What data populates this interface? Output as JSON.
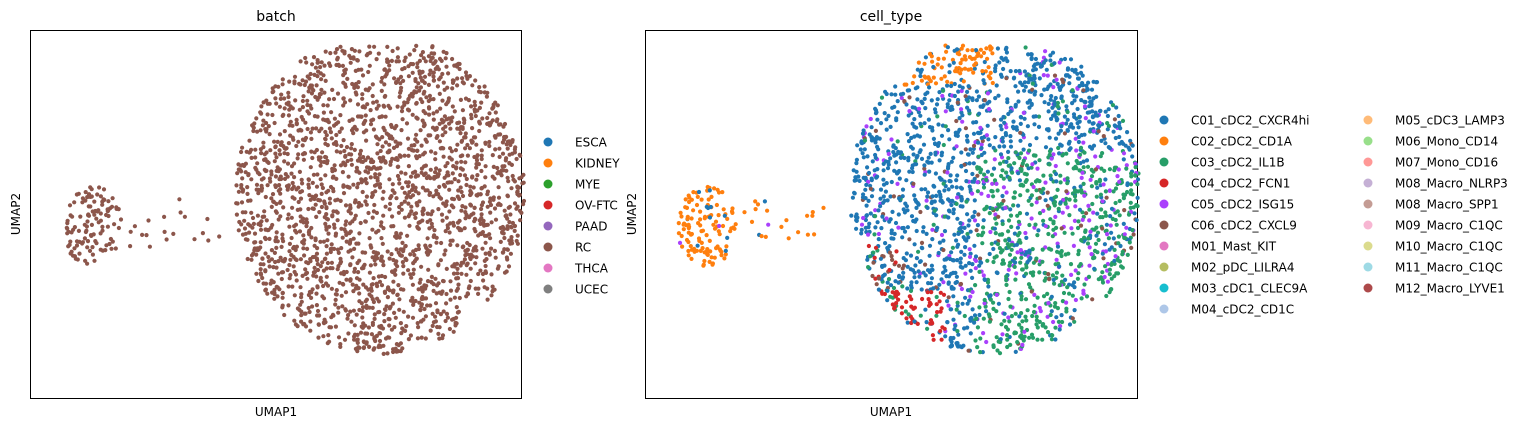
{
  "chart_data": [
    {
      "type": "scatter",
      "title": "batch",
      "xlabel": "UMAP1",
      "ylabel": "UMAP2",
      "grid": false,
      "legend_position": "right",
      "point_color": "#8c564b",
      "legend": [
        {
          "label": "ESCA",
          "color": "#1f77b4"
        },
        {
          "label": "KIDNEY",
          "color": "#ff7f0e"
        },
        {
          "label": "MYE",
          "color": "#2ca02c"
        },
        {
          "label": "OV-FTC",
          "color": "#d62728"
        },
        {
          "label": "PAAD",
          "color": "#9467bd"
        },
        {
          "label": "RC",
          "color": "#8c564b"
        },
        {
          "label": "THCA",
          "color": "#e377c2"
        },
        {
          "label": "UCEC",
          "color": "#7f7f7f"
        }
      ]
    },
    {
      "type": "scatter",
      "title": "cell_type",
      "xlabel": "UMAP1",
      "ylabel": "UMAP2",
      "grid": false,
      "legend_position": "right",
      "legend": [
        {
          "label": "C01_cDC2_CXCR4hi",
          "color": "#1f77b4"
        },
        {
          "label": "C02_cDC2_CD1A",
          "color": "#ff7f0e"
        },
        {
          "label": "C03_cDC2_IL1B",
          "color": "#279e68"
        },
        {
          "label": "C04_cDC2_FCN1",
          "color": "#d62728"
        },
        {
          "label": "C05_cDC2_ISG15",
          "color": "#aa40fc"
        },
        {
          "label": "C06_cDC2_CXCL9",
          "color": "#8c564b"
        },
        {
          "label": "M01_Mast_KIT",
          "color": "#e377c2"
        },
        {
          "label": "M02_pDC_LILRA4",
          "color": "#b5bd61"
        },
        {
          "label": "M03_cDC1_CLEC9A",
          "color": "#17becf"
        },
        {
          "label": "M04_cDC2_CD1C",
          "color": "#aec7e8"
        },
        {
          "label": "M05_cDC3_LAMP3",
          "color": "#ffbb78"
        },
        {
          "label": "M06_Mono_CD14",
          "color": "#98df8a"
        },
        {
          "label": "M07_Mono_CD16",
          "color": "#ff9896"
        },
        {
          "label": "M08_Macro_NLRP3",
          "color": "#c5b0d5"
        },
        {
          "label": "M08_Macro_SPP1",
          "color": "#c49c94"
        },
        {
          "label": "M09_Macro_C1QC",
          "color": "#f7b6d2"
        },
        {
          "label": "M10_Macro_C1QC",
          "color": "#dbdb8d"
        },
        {
          "label": "M11_Macro_C1QC",
          "color": "#9edae5"
        },
        {
          "label": "M12_Macro_LYVE1",
          "color": "#ad494a"
        }
      ]
    }
  ]
}
